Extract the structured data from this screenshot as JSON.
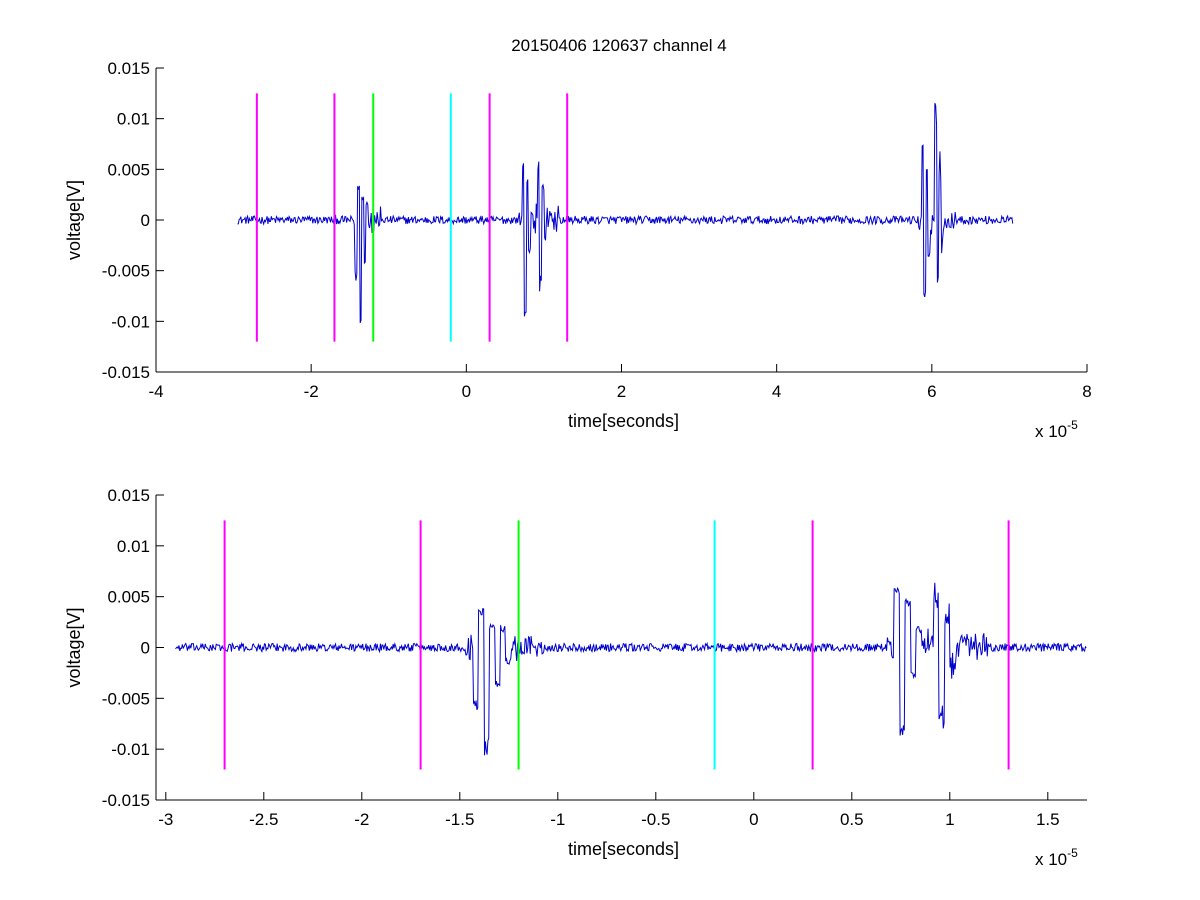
{
  "figure_title": "20150406 120637 channel 4",
  "colors": {
    "signal": "#0000cc",
    "marker_magenta": "#ff00ff",
    "marker_green": "#00ff00",
    "marker_cyan": "#00ffff",
    "axes": "#000000",
    "background": "#ffffff"
  },
  "chart_data": [
    {
      "type": "line",
      "title": "20150406 120637 channel 4",
      "xlabel": "time[seconds]",
      "ylabel": "voltage[V]",
      "x_scale_note": "x 10-5",
      "x_exponent": -5,
      "xlim": [
        -4,
        8
      ],
      "ylim": [
        -0.015,
        0.015
      ],
      "xticks": [
        -4,
        -2,
        0,
        2,
        4,
        6,
        8
      ],
      "xtick_labels": [
        "-4",
        "-2",
        "0",
        "2",
        "4",
        "6",
        "8"
      ],
      "yticks": [
        -0.015,
        -0.01,
        -0.005,
        0,
        0.005,
        0.01,
        0.015
      ],
      "ytick_labels": [
        "-0.015",
        "-0.01",
        "-0.005",
        "0",
        "0.005",
        "0.01",
        "0.015"
      ],
      "grid": false,
      "markers": [
        {
          "x": -2.7,
          "color": "magenta",
          "y_range": [
            -0.012,
            0.0125
          ]
        },
        {
          "x": -1.7,
          "color": "magenta",
          "y_range": [
            -0.012,
            0.0125
          ]
        },
        {
          "x": -1.2,
          "color": "green",
          "y_range": [
            -0.012,
            0.0125
          ]
        },
        {
          "x": -0.2,
          "color": "cyan",
          "y_range": [
            -0.012,
            0.0125
          ]
        },
        {
          "x": 0.3,
          "color": "magenta",
          "y_range": [
            -0.012,
            0.0125
          ]
        },
        {
          "x": 1.3,
          "color": "magenta",
          "y_range": [
            -0.012,
            0.0125
          ]
        }
      ],
      "series": [
        {
          "color": "blue",
          "x_range": [
            -2.95,
            7.05
          ],
          "baseline": 0.0,
          "noise_amplitude": 0.0004,
          "bursts": [
            {
              "x": -1.42,
              "extrema": [
                -0.006,
                0.0035,
                -0.011,
                0.0025,
                -0.004,
                0.002
              ]
            },
            {
              "x": 0.73,
              "extrema": [
                0.006,
                -0.0092,
                0.0045,
                -0.003
              ]
            },
            {
              "x": 0.93,
              "extrema": [
                0.0055,
                -0.0067,
                0.0035,
                -0.002
              ]
            },
            {
              "x": 5.88,
              "extrema": [
                0.0078,
                -0.0083,
                0.005,
                -0.004
              ]
            },
            {
              "x": 6.05,
              "extrema": [
                0.0113,
                -0.0067,
                0.006,
                -0.003
              ]
            }
          ]
        }
      ]
    },
    {
      "type": "line",
      "title": "",
      "xlabel": "time[seconds]",
      "ylabel": "voltage[V]",
      "x_scale_note": "x 10-5",
      "x_exponent": -5,
      "xlim": [
        -3.05,
        1.7
      ],
      "ylim": [
        -0.015,
        0.015
      ],
      "xticks": [
        -3,
        -2.5,
        -2,
        -1.5,
        -1,
        -0.5,
        0,
        0.5,
        1,
        1.5
      ],
      "xtick_labels": [
        "-3",
        "-2.5",
        "-2",
        "-1.5",
        "-1",
        "-0.5",
        "0",
        "0.5",
        "1",
        "1.5"
      ],
      "yticks": [
        -0.015,
        -0.01,
        -0.005,
        0,
        0.005,
        0.01,
        0.015
      ],
      "ytick_labels": [
        "-0.015",
        "-0.01",
        "-0.005",
        "0",
        "0.005",
        "0.01",
        "0.015"
      ],
      "grid": false,
      "markers": [
        {
          "x": -2.7,
          "color": "magenta",
          "y_range": [
            -0.012,
            0.0125
          ]
        },
        {
          "x": -1.7,
          "color": "magenta",
          "y_range": [
            -0.012,
            0.0125
          ]
        },
        {
          "x": -1.2,
          "color": "green",
          "y_range": [
            -0.012,
            0.0125
          ]
        },
        {
          "x": -0.2,
          "color": "cyan",
          "y_range": [
            -0.012,
            0.0125
          ]
        },
        {
          "x": 0.3,
          "color": "magenta",
          "y_range": [
            -0.012,
            0.0125
          ]
        },
        {
          "x": 1.3,
          "color": "magenta",
          "y_range": [
            -0.012,
            0.0125
          ]
        }
      ],
      "series": [
        {
          "color": "blue",
          "x_range": [
            -2.95,
            1.7
          ],
          "baseline": 0.0,
          "noise_amplitude": 0.0004,
          "bursts": [
            {
              "x": -1.42,
              "extrema": [
                -0.006,
                0.0038,
                -0.0108,
                0.0022,
                -0.004,
                0.002,
                -0.0015
              ]
            },
            {
              "x": 0.73,
              "extrema": [
                0.006,
                -0.0092,
                0.0048,
                -0.003,
                0.002
              ]
            },
            {
              "x": 0.93,
              "extrema": [
                0.0055,
                -0.0067,
                0.0038,
                -0.002
              ]
            }
          ]
        }
      ]
    }
  ]
}
